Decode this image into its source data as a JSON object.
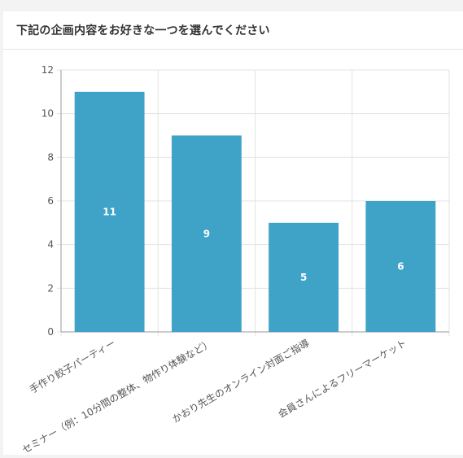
{
  "card": {
    "title": "下記の企画内容をお好きな一つを選んでください"
  },
  "colors": {
    "bar": "#3fa3c8",
    "grid": "#e3e3e3",
    "axis": "#999999",
    "tick_text": "#555555",
    "value_text": "#ffffff"
  },
  "chart_data": {
    "type": "bar",
    "categories": [
      "手作り餃子パーティー",
      "セミナー（例：10分間の整体、物作り体験など）",
      "かおり先生のオンライン対面ご指導",
      "会員さんによるフリーマーケット"
    ],
    "values": [
      11,
      9,
      5,
      6
    ],
    "data_labels": [
      "11",
      "9",
      "5",
      "6"
    ],
    "title": "",
    "xlabel": "",
    "ylabel": "",
    "ylim": [
      0,
      12
    ],
    "yticks": [
      0,
      2,
      4,
      6,
      8,
      10,
      12
    ],
    "grid": true,
    "legend": "none"
  }
}
